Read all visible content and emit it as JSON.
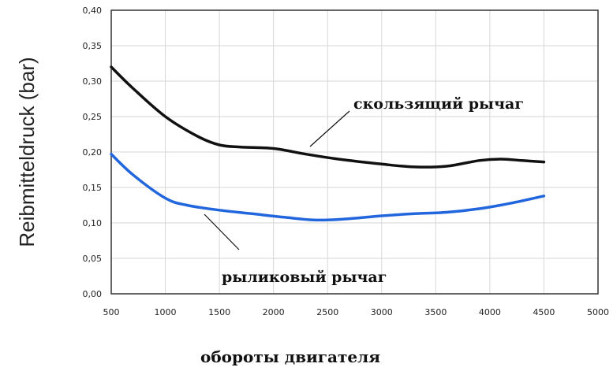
{
  "chart_data": {
    "type": "line",
    "xlabel": "обороты двигателя",
    "ylabel": "Reibmitteldruck (bar)",
    "xlim": [
      500,
      5000
    ],
    "ylim": [
      0,
      0.4
    ],
    "grid": true,
    "x_ticks": [
      "500",
      "1000",
      "1500",
      "2000",
      "2500",
      "3000",
      "3500",
      "4000",
      "4500",
      "5000"
    ],
    "y_ticks": [
      "0,00",
      "0,05",
      "0,10",
      "0,15",
      "0,20",
      "0,25",
      "0,30",
      "0,35",
      "0,40"
    ],
    "series": [
      {
        "name": "скользящий рычаг",
        "color": "#111111",
        "x": [
          500,
          700,
          1000,
          1300,
          1500,
          1700,
          2000,
          2300,
          2600,
          3000,
          3300,
          3600,
          3900,
          4100,
          4300,
          4500
        ],
        "y": [
          0.32,
          0.29,
          0.25,
          0.222,
          0.21,
          0.207,
          0.205,
          0.197,
          0.19,
          0.183,
          0.179,
          0.18,
          0.188,
          0.19,
          0.188,
          0.186
        ]
      },
      {
        "name": "рыликовый рычаг",
        "color": "#2266dd",
        "x": [
          500,
          700,
          1000,
          1200,
          1500,
          1800,
          2100,
          2400,
          2700,
          3000,
          3300,
          3600,
          3900,
          4200,
          4500
        ],
        "y": [
          0.197,
          0.168,
          0.135,
          0.125,
          0.118,
          0.113,
          0.108,
          0.104,
          0.106,
          0.11,
          0.113,
          0.115,
          0.12,
          0.128,
          0.138
        ]
      }
    ],
    "annotations": [
      "скользящий рычаг",
      "рыликовый рычаг"
    ]
  }
}
